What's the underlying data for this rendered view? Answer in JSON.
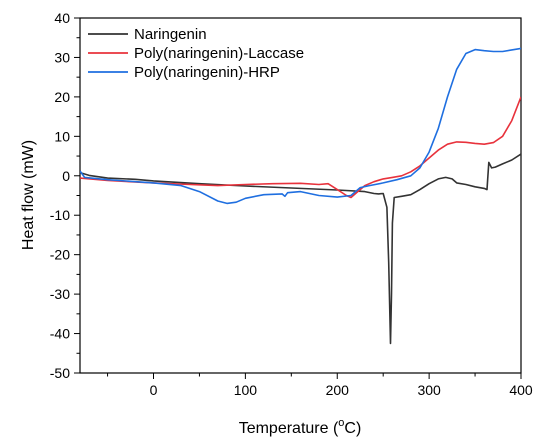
{
  "chart_data": {
    "type": "line",
    "xlabel": "Temperature (",
    "xlabel_sup": "o",
    "xlabel_unit": "C)",
    "ylabel": "Heat flow (mW)",
    "xlim": [
      -80,
      400
    ],
    "ylim": [
      -50,
      40
    ],
    "x_ticks": [
      0,
      100,
      200,
      300,
      400
    ],
    "y_ticks": [
      -50,
      -40,
      -30,
      -20,
      -10,
      0,
      10,
      20,
      30,
      40
    ],
    "x_tick_labels": [
      "0",
      "100",
      "200",
      "300",
      "400"
    ],
    "y_tick_labels": [
      "-50",
      "-40",
      "-30",
      "-20",
      "-10",
      "0",
      "10",
      "20",
      "30",
      "40"
    ],
    "legend_position": "top-left",
    "grid": false,
    "series": [
      {
        "name": "Naringenin",
        "color": "#333333",
        "points": [
          [
            -80,
            0.8
          ],
          [
            -70,
            0.1
          ],
          [
            -50,
            -0.6
          ],
          [
            -20,
            -0.9
          ],
          [
            0,
            -1.3
          ],
          [
            50,
            -2.0
          ],
          [
            100,
            -2.6
          ],
          [
            150,
            -3.1
          ],
          [
            200,
            -3.6
          ],
          [
            230,
            -4.0
          ],
          [
            240,
            -4.5
          ],
          [
            245,
            -4.6
          ],
          [
            250,
            -4.5
          ],
          [
            254,
            -8.0
          ],
          [
            256,
            -22.0
          ],
          [
            258,
            -42.5
          ],
          [
            259,
            -30.0
          ],
          [
            260,
            -12.0
          ],
          [
            262,
            -5.5
          ],
          [
            270,
            -5.2
          ],
          [
            280,
            -4.8
          ],
          [
            290,
            -3.5
          ],
          [
            300,
            -2.0
          ],
          [
            310,
            -0.8
          ],
          [
            318,
            -0.4
          ],
          [
            325,
            -0.8
          ],
          [
            330,
            -1.8
          ],
          [
            340,
            -2.2
          ],
          [
            350,
            -2.8
          ],
          [
            360,
            -3.2
          ],
          [
            363,
            -3.5
          ],
          [
            365,
            3.4
          ],
          [
            368,
            2.0
          ],
          [
            372,
            2.2
          ],
          [
            380,
            3.0
          ],
          [
            390,
            4.0
          ],
          [
            400,
            5.5
          ]
        ]
      },
      {
        "name": "Poly(naringenin)-Laccase",
        "color": "#e8323c",
        "points": [
          [
            -80,
            -0.6
          ],
          [
            -50,
            -1.2
          ],
          [
            0,
            -1.8
          ],
          [
            40,
            -2.2
          ],
          [
            70,
            -2.5
          ],
          [
            100,
            -2.2
          ],
          [
            130,
            -2.0
          ],
          [
            160,
            -1.9
          ],
          [
            180,
            -2.2
          ],
          [
            190,
            -2.0
          ],
          [
            200,
            -3.5
          ],
          [
            210,
            -5.0
          ],
          [
            215,
            -5.5
          ],
          [
            220,
            -4.5
          ],
          [
            230,
            -2.5
          ],
          [
            240,
            -1.5
          ],
          [
            250,
            -0.8
          ],
          [
            260,
            -0.4
          ],
          [
            270,
            0.0
          ],
          [
            280,
            1.0
          ],
          [
            290,
            2.5
          ],
          [
            300,
            4.5
          ],
          [
            310,
            6.5
          ],
          [
            320,
            8.0
          ],
          [
            330,
            8.6
          ],
          [
            340,
            8.5
          ],
          [
            350,
            8.2
          ],
          [
            360,
            8.0
          ],
          [
            370,
            8.4
          ],
          [
            380,
            10.0
          ],
          [
            390,
            14.0
          ],
          [
            400,
            20.0
          ]
        ]
      },
      {
        "name": "Poly(naringenin)-HRP",
        "color": "#1f6fe0",
        "points": [
          [
            -80,
            1.2
          ],
          [
            -75,
            -0.4
          ],
          [
            -50,
            -1.0
          ],
          [
            0,
            -1.8
          ],
          [
            30,
            -2.5
          ],
          [
            50,
            -4.0
          ],
          [
            70,
            -6.4
          ],
          [
            80,
            -7.0
          ],
          [
            90,
            -6.7
          ],
          [
            100,
            -5.7
          ],
          [
            120,
            -4.8
          ],
          [
            140,
            -4.6
          ],
          [
            143,
            -5.2
          ],
          [
            146,
            -4.3
          ],
          [
            160,
            -4.0
          ],
          [
            180,
            -5.0
          ],
          [
            200,
            -5.4
          ],
          [
            215,
            -5.0
          ],
          [
            225,
            -3.0
          ],
          [
            235,
            -2.5
          ],
          [
            250,
            -1.8
          ],
          [
            265,
            -1.0
          ],
          [
            280,
            0.0
          ],
          [
            290,
            2.0
          ],
          [
            300,
            6.0
          ],
          [
            310,
            12.0
          ],
          [
            320,
            20.0
          ],
          [
            330,
            27.0
          ],
          [
            340,
            31.0
          ],
          [
            350,
            32.0
          ],
          [
            360,
            31.7
          ],
          [
            370,
            31.5
          ],
          [
            380,
            31.5
          ],
          [
            390,
            31.9
          ],
          [
            400,
            32.3
          ]
        ]
      }
    ]
  }
}
